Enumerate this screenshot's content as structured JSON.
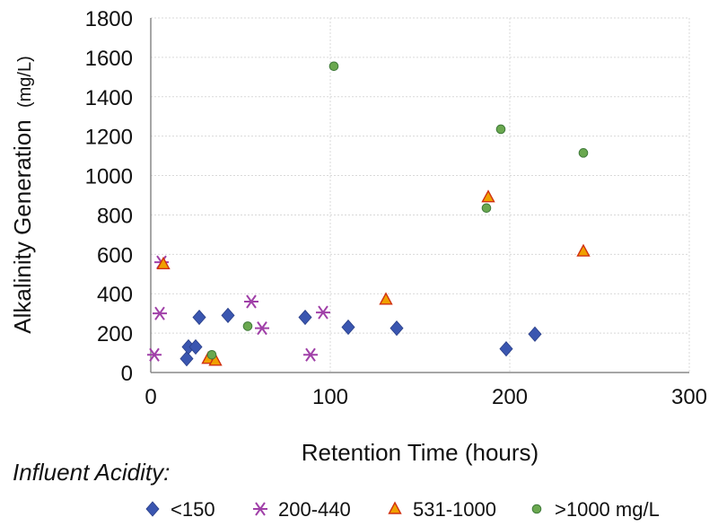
{
  "chart_data": {
    "type": "scatter",
    "xlabel": "Retention Time (hours)",
    "ylabel_main": "Alkalinity Generation",
    "ylabel_unit": "(mg/L)",
    "xlim": [
      0,
      300
    ],
    "ylim": [
      0,
      1800
    ],
    "x_ticks": [
      0,
      100,
      200,
      300
    ],
    "y_ticks": [
      0,
      200,
      400,
      600,
      800,
      1000,
      1200,
      1400,
      1600,
      1800
    ],
    "grid": true,
    "legend_title": "Influent Acidity:",
    "legend_position": "bottom",
    "series": [
      {
        "name": "<150",
        "marker": "diamond",
        "color": "#3a56b0",
        "points": [
          [
            20,
            70
          ],
          [
            21,
            130
          ],
          [
            25,
            130
          ],
          [
            27,
            280
          ],
          [
            43,
            290
          ],
          [
            86,
            280
          ],
          [
            110,
            230
          ],
          [
            137,
            225
          ],
          [
            198,
            120
          ],
          [
            214,
            195
          ]
        ]
      },
      {
        "name": "200-440",
        "marker": "star",
        "color": "#a040a8",
        "points": [
          [
            2,
            90
          ],
          [
            5,
            300
          ],
          [
            6,
            560
          ],
          [
            56,
            360
          ],
          [
            62,
            225
          ],
          [
            89,
            90
          ],
          [
            96,
            305
          ]
        ]
      },
      {
        "name": "531-1000",
        "marker": "triangle",
        "color": "#f0a000",
        "stroke": "#d03010",
        "points": [
          [
            7,
            550
          ],
          [
            32,
            70
          ],
          [
            36,
            60
          ],
          [
            131,
            370
          ],
          [
            188,
            890
          ],
          [
            241,
            615
          ]
        ]
      },
      {
        "name": ">1000 mg/L",
        "marker": "circle",
        "color": "#6aa84f",
        "stroke": "#3f7a3a",
        "points": [
          [
            34,
            90
          ],
          [
            54,
            235
          ],
          [
            102,
            1555
          ],
          [
            187,
            835
          ],
          [
            195,
            1235
          ],
          [
            241,
            1115
          ]
        ]
      }
    ]
  }
}
